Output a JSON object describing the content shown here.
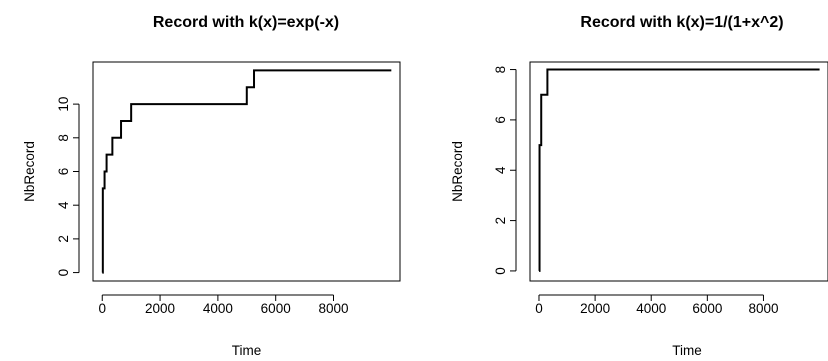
{
  "chart_data": [
    {
      "type": "line",
      "step": true,
      "title": "Record with k(x)=exp(-x)",
      "xlabel": "Time",
      "ylabel": "NbRecord",
      "xlim": [
        -320,
        10300
      ],
      "ylim": [
        -0.5,
        12.5
      ],
      "xticks": [
        0,
        2000,
        4000,
        6000,
        8000
      ],
      "yticks": [
        0,
        2,
        4,
        6,
        8,
        10
      ],
      "series": [
        {
          "x": [
            0,
            20,
            80,
            150,
            350,
            650,
            1000,
            5000,
            5250,
            10000
          ],
          "y": [
            0,
            5,
            6,
            7,
            8,
            9,
            10,
            11,
            12,
            12
          ]
        }
      ]
    },
    {
      "type": "line",
      "step": true,
      "title": "Record with k(x)=1/(1+x^2)",
      "xlabel": "Time",
      "ylabel": "NbRecord",
      "xlim": [
        -320,
        10300
      ],
      "ylim": [
        -0.4,
        8.3
      ],
      "xticks": [
        0,
        2000,
        4000,
        6000,
        8000
      ],
      "yticks": [
        0,
        2,
        4,
        6,
        8
      ],
      "series": [
        {
          "x": [
            0,
            20,
            80,
            300,
            10000
          ],
          "y": [
            0,
            5,
            7,
            8,
            8
          ]
        }
      ]
    }
  ]
}
